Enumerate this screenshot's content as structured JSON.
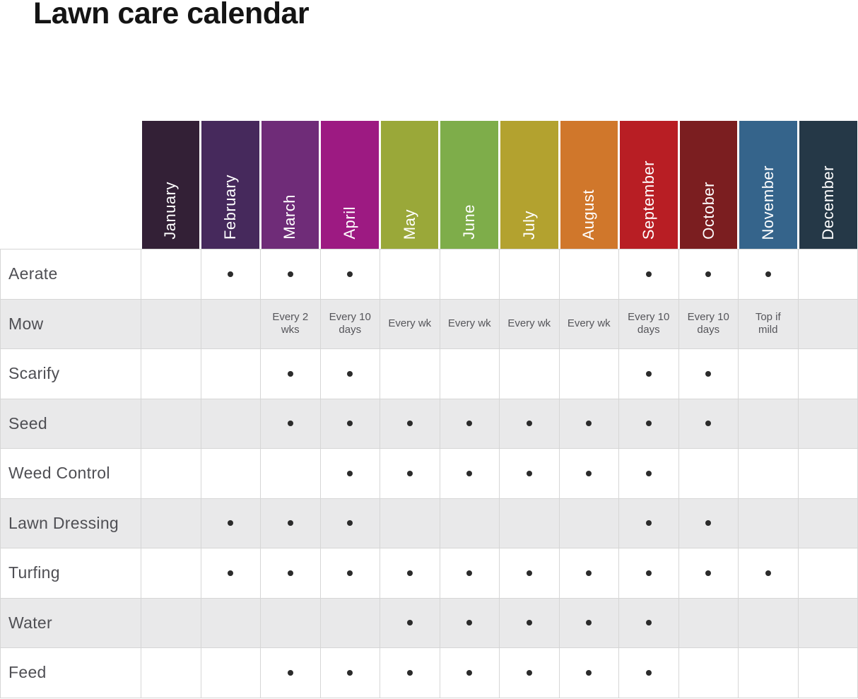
{
  "title": "Lawn care calendar",
  "chart_data": {
    "type": "table",
    "title": "Lawn care calendar",
    "dot_symbol": "•",
    "months": [
      {
        "label": "January",
        "color": "#332036"
      },
      {
        "label": "February",
        "color": "#46295c"
      },
      {
        "label": "March",
        "color": "#6f2c78"
      },
      {
        "label": "April",
        "color": "#9d1a82"
      },
      {
        "label": "May",
        "color": "#9aa839"
      },
      {
        "label": "June",
        "color": "#7ead4a"
      },
      {
        "label": "July",
        "color": "#b3a22f"
      },
      {
        "label": "August",
        "color": "#d0772b"
      },
      {
        "label": "September",
        "color": "#b81e24"
      },
      {
        "label": "October",
        "color": "#7b1e20"
      },
      {
        "label": "November",
        "color": "#35648b"
      },
      {
        "label": "December",
        "color": "#253847"
      }
    ],
    "rows": [
      {
        "label": "Aerate",
        "cells": [
          "",
          "dot",
          "dot",
          "dot",
          "",
          "",
          "",
          "",
          "dot",
          "dot",
          "dot",
          ""
        ]
      },
      {
        "label": "Mow",
        "cells": [
          "",
          "",
          "Every 2 wks",
          "Every 10 days",
          "Every wk",
          "Every wk",
          "Every wk",
          "Every wk",
          "Every 10 days",
          "Every 10 days",
          "Top if mild",
          ""
        ]
      },
      {
        "label": "Scarify",
        "cells": [
          "",
          "",
          "dot",
          "dot",
          "",
          "",
          "",
          "",
          "dot",
          "dot",
          "",
          ""
        ]
      },
      {
        "label": "Seed",
        "cells": [
          "",
          "",
          "dot",
          "dot",
          "dot",
          "dot",
          "dot",
          "dot",
          "dot",
          "dot",
          "",
          ""
        ]
      },
      {
        "label": "Weed Control",
        "cells": [
          "",
          "",
          "",
          "dot",
          "dot",
          "dot",
          "dot",
          "dot",
          "dot",
          "",
          "",
          ""
        ]
      },
      {
        "label": "Lawn Dressing",
        "cells": [
          "",
          "dot",
          "dot",
          "dot",
          "",
          "",
          "",
          "",
          "dot",
          "dot",
          "",
          ""
        ]
      },
      {
        "label": "Turfing",
        "cells": [
          "",
          "dot",
          "dot",
          "dot",
          "dot",
          "dot",
          "dot",
          "dot",
          "dot",
          "dot",
          "dot",
          ""
        ]
      },
      {
        "label": "Water",
        "cells": [
          "",
          "",
          "",
          "",
          "dot",
          "dot",
          "dot",
          "dot",
          "dot",
          "",
          "",
          ""
        ]
      },
      {
        "label": "Feed",
        "cells": [
          "",
          "",
          "dot",
          "dot",
          "dot",
          "dot",
          "dot",
          "dot",
          "dot",
          "",
          "",
          ""
        ]
      }
    ],
    "colors": {
      "month_text": "#ffffff",
      "grid_line": "#d6d6d6",
      "row_bg": "#ffffff",
      "row_alt_bg": "#e9e9ea",
      "label_text": "#4f4f54",
      "cell_text": "#55555a",
      "dot": "#2b2b2b"
    },
    "layout": {
      "header_orientation": "vertical-bottom-to-top",
      "row_striping": "white / light-gray alternating",
      "legend": "none",
      "grid": true
    }
  }
}
